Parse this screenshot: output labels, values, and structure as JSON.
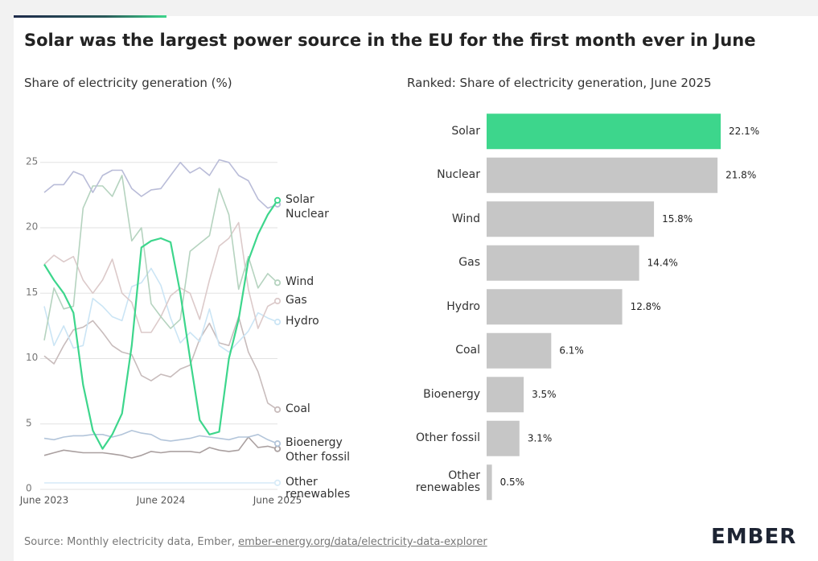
{
  "title": "Solar was the largest power source in the EU for the first month ever in June",
  "chart_data": [
    {
      "type": "line",
      "subtitle": "Share of electricity generation (%)",
      "categories": [
        "June 2023",
        null,
        null,
        null,
        null,
        null,
        null,
        null,
        null,
        null,
        null,
        null,
        "June 2024",
        null,
        null,
        null,
        null,
        null,
        null,
        null,
        null,
        null,
        null,
        null,
        "June 2025"
      ],
      "ylim": [
        0,
        28
      ],
      "yticks": [
        0,
        5,
        10,
        15,
        20,
        25
      ],
      "grid": true,
      "series": [
        {
          "name": "Solar",
          "color": "#3dd68c",
          "values": [
            17.2,
            16.0,
            15.0,
            13.5,
            8.0,
            4.5,
            3.1,
            4.2,
            5.8,
            11.0,
            18.5,
            19.0,
            19.2,
            18.9,
            15.0,
            10.0,
            5.3,
            4.2,
            4.4,
            10.0,
            13.0,
            17.5,
            19.5,
            21.0,
            22.1
          ]
        },
        {
          "name": "Nuclear",
          "color": "#b9bcd8",
          "values": [
            22.7,
            23.3,
            23.3,
            24.3,
            24.0,
            22.7,
            24.0,
            24.4,
            24.4,
            23.0,
            22.4,
            22.9,
            23.0,
            24.0,
            25.0,
            24.2,
            24.6,
            24.0,
            25.2,
            25.0,
            24.0,
            23.6,
            22.2,
            21.5,
            21.8
          ]
        },
        {
          "name": "Wind",
          "color": "#b5d3bf",
          "values": [
            11.4,
            15.4,
            13.8,
            14.0,
            21.5,
            23.2,
            23.2,
            22.4,
            24.0,
            19.0,
            20.0,
            14.2,
            13.2,
            12.3,
            13.0,
            18.2,
            18.8,
            19.4,
            23.0,
            21.0,
            15.3,
            17.8,
            15.4,
            16.5,
            15.8
          ]
        },
        {
          "name": "Gas",
          "color": "#dccaca",
          "values": [
            17.2,
            17.9,
            17.4,
            17.8,
            16.0,
            15.0,
            16.0,
            17.6,
            15.0,
            14.3,
            12.0,
            12.0,
            13.2,
            14.8,
            15.4,
            15.0,
            13.0,
            16.0,
            18.6,
            19.2,
            20.4,
            15.3,
            12.3,
            14.0,
            14.4
          ]
        },
        {
          "name": "Hydro",
          "color": "#cbe5f5",
          "values": [
            14.0,
            11.0,
            12.5,
            10.8,
            11.0,
            14.6,
            14.0,
            13.2,
            12.9,
            15.5,
            15.8,
            16.9,
            15.6,
            13.1,
            11.2,
            12.0,
            11.3,
            13.8,
            11.0,
            10.5,
            11.3,
            12.1,
            13.5,
            13.1,
            12.8
          ]
        },
        {
          "name": "Coal",
          "color": "#c8bcbc",
          "values": [
            10.2,
            9.6,
            11.0,
            12.2,
            12.4,
            12.9,
            12.0,
            11.0,
            10.5,
            10.3,
            8.7,
            8.3,
            8.8,
            8.6,
            9.2,
            9.5,
            11.5,
            12.7,
            11.2,
            11.0,
            13.2,
            10.5,
            9.0,
            6.6,
            6.1
          ]
        },
        {
          "name": "Bioenergy",
          "color": "#b3c5da",
          "values": [
            3.9,
            3.8,
            4.0,
            4.1,
            4.1,
            4.2,
            4.2,
            4.0,
            4.2,
            4.5,
            4.3,
            4.2,
            3.8,
            3.7,
            3.8,
            3.9,
            4.1,
            4.0,
            3.9,
            3.8,
            4.0,
            4.0,
            4.2,
            3.8,
            3.5
          ]
        },
        {
          "name": "Other fossil",
          "color": "#aaa0a0",
          "values": [
            2.6,
            2.8,
            3.0,
            2.9,
            2.8,
            2.8,
            2.8,
            2.7,
            2.6,
            2.4,
            2.6,
            2.9,
            2.8,
            2.9,
            2.9,
            2.9,
            2.8,
            3.2,
            3.0,
            2.9,
            3.0,
            4.0,
            3.2,
            3.3,
            3.1
          ]
        },
        {
          "name": "Other renewables",
          "color": "#d9ecf8",
          "values": [
            0.5,
            0.5,
            0.5,
            0.5,
            0.5,
            0.5,
            0.5,
            0.5,
            0.5,
            0.5,
            0.5,
            0.5,
            0.5,
            0.5,
            0.5,
            0.5,
            0.5,
            0.5,
            0.5,
            0.5,
            0.5,
            0.5,
            0.5,
            0.5,
            0.5
          ]
        }
      ]
    },
    {
      "type": "hbar",
      "subtitle": "Ranked: Share of electricity generation, June 2025",
      "categories": [
        "Solar",
        "Nuclear",
        "Wind",
        "Gas",
        "Hydro",
        "Coal",
        "Bioenergy",
        "Other fossil",
        "Other renewables"
      ],
      "values": [
        22.1,
        21.8,
        15.8,
        14.4,
        12.8,
        6.1,
        3.5,
        3.1,
        0.5
      ],
      "value_labels": [
        "22.1%",
        "21.8%",
        "15.8%",
        "14.4%",
        "12.8%",
        "6.1%",
        "3.5%",
        "3.1%",
        "0.5%"
      ],
      "colors": [
        "#3dd68c",
        "#c6c6c6",
        "#c6c6c6",
        "#c6c6c6",
        "#c6c6c6",
        "#c6c6c6",
        "#c6c6c6",
        "#c6c6c6",
        "#c6c6c6"
      ]
    }
  ],
  "source": "Source: Monthly electricity data, Ember,",
  "source_link": "ember-energy.org/data/electricity-data-explorer",
  "logo": "EMBER"
}
